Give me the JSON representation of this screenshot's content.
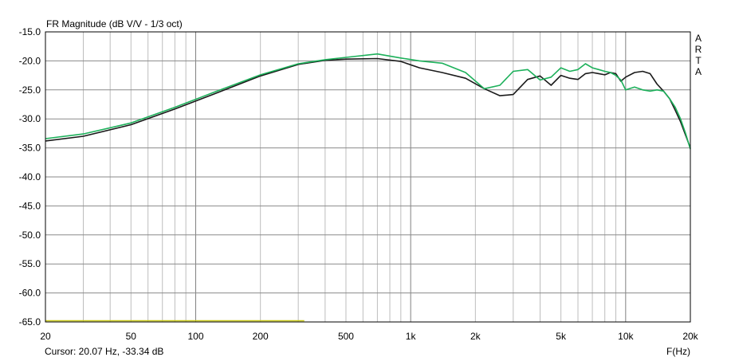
{
  "chart_data": {
    "type": "line",
    "title": "FR Magnitude (dB V/V - 1/3 oct)",
    "xlabel": "F(Hz)",
    "ylabel": "",
    "x_scale": "log",
    "xlim": [
      20,
      20000
    ],
    "ylim": [
      -65,
      -15
    ],
    "grid": true,
    "x_ticks": [
      20,
      50,
      100,
      200,
      500,
      1000,
      2000,
      5000,
      10000,
      20000
    ],
    "x_tick_labels": [
      "20",
      "50",
      "100",
      "200",
      "500",
      "1k",
      "2k",
      "5k",
      "10k",
      "20k"
    ],
    "y_ticks": [
      -15,
      -20,
      -25,
      -30,
      -35,
      -40,
      -45,
      -50,
      -55,
      -60,
      -65
    ],
    "y_tick_labels": [
      "-15.0",
      "-20.0",
      "-25.0",
      "-30.0",
      "-35.0",
      "-40.0",
      "-45.0",
      "-50.0",
      "-55.0",
      "-60.0",
      "-65.0"
    ],
    "watermark": "ARTA",
    "cursor_text": "Cursor: 20.07 Hz, -33.34 dB",
    "series": [
      {
        "color": "#1a1a1a",
        "x": [
          20,
          30,
          50,
          80,
          120,
          200,
          300,
          400,
          500,
          700,
          900,
          1100,
          1400,
          1800,
          2200,
          2600,
          3000,
          3500,
          4000,
          4500,
          5000,
          5500,
          6000,
          6500,
          7000,
          7500,
          8000,
          8500,
          9000,
          9500,
          10000,
          11000,
          12000,
          13000,
          14000,
          15000,
          16000,
          17000,
          18000,
          19000,
          20000
        ],
        "y": [
          -33.8,
          -33.0,
          -31.0,
          -28.3,
          -25.8,
          -22.6,
          -20.6,
          -19.9,
          -19.7,
          -19.6,
          -20.1,
          -21.2,
          -22.0,
          -23.0,
          -24.8,
          -26.0,
          -25.8,
          -23.2,
          -22.6,
          -24.2,
          -22.5,
          -23.0,
          -23.2,
          -22.2,
          -22.0,
          -22.2,
          -22.4,
          -22.0,
          -22.2,
          -23.5,
          -22.8,
          -22.0,
          -21.8,
          -22.2,
          -24.0,
          -25.2,
          -26.5,
          -28.5,
          -30.5,
          -32.8,
          -35.0
        ]
      },
      {
        "color": "#1cb05a",
        "x": [
          20,
          30,
          50,
          80,
          120,
          200,
          300,
          400,
          500,
          700,
          900,
          1100,
          1400,
          1800,
          2200,
          2600,
          3000,
          3500,
          4000,
          4500,
          5000,
          5500,
          6000,
          6500,
          7000,
          7500,
          8000,
          8500,
          9000,
          9500,
          10000,
          11000,
          12000,
          13000,
          14000,
          15000,
          16000,
          17000,
          18000,
          19000,
          20000
        ],
        "y": [
          -33.4,
          -32.6,
          -30.7,
          -28.0,
          -25.5,
          -22.4,
          -20.5,
          -19.8,
          -19.4,
          -18.8,
          -19.5,
          -20.0,
          -20.4,
          -22.0,
          -24.8,
          -24.2,
          -21.8,
          -21.5,
          -23.3,
          -22.8,
          -21.2,
          -21.8,
          -21.5,
          -20.5,
          -21.2,
          -21.5,
          -21.8,
          -22.0,
          -22.5,
          -23.3,
          -25.0,
          -24.5,
          -25.0,
          -25.2,
          -25.0,
          -25.2,
          -26.5,
          -28.0,
          -30.0,
          -32.5,
          -35.2
        ]
      },
      {
        "color": "#c8c814",
        "x": [
          20,
          320
        ],
        "y": [
          -64.8,
          -64.8
        ]
      }
    ]
  }
}
